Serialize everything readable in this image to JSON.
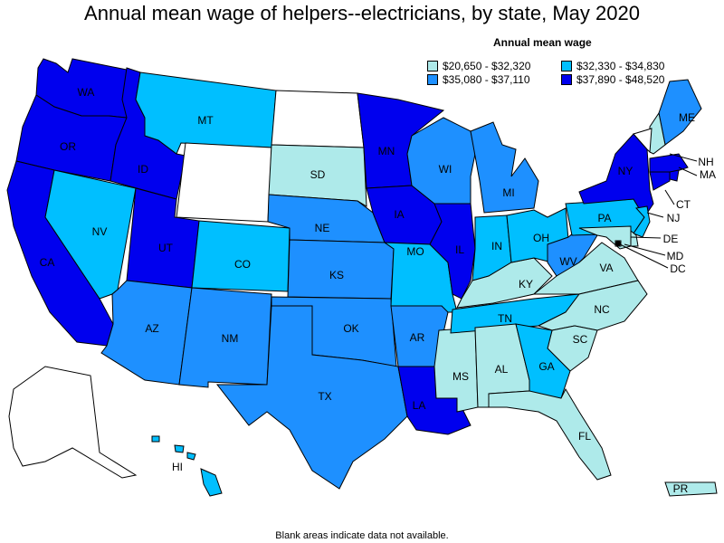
{
  "title": "Annual mean wage of helpers--electricians, by state, May 2020",
  "legend": {
    "title": "Annual mean wage",
    "items": [
      {
        "label": "$20,650 - $32,320",
        "color": "#aeeaea"
      },
      {
        "label": "$32,330 - $34,830",
        "color": "#00bfff"
      },
      {
        "label": "$35,080 - $37,110",
        "color": "#1e90ff"
      },
      {
        "label": "$37,890 - $48,520",
        "color": "#0000ee"
      }
    ]
  },
  "note": "Blank areas indicate data not available.",
  "colors": {
    "none": "#ffffff",
    "c1": "#aeeaea",
    "c2": "#00bfff",
    "c3": "#1e90ff",
    "c4": "#0000ee"
  },
  "states": [
    {
      "code": "WA",
      "tier": "c4"
    },
    {
      "code": "OR",
      "tier": "c4"
    },
    {
      "code": "CA",
      "tier": "c4"
    },
    {
      "code": "ID",
      "tier": "c4"
    },
    {
      "code": "NV",
      "tier": "c2"
    },
    {
      "code": "UT",
      "tier": "c4"
    },
    {
      "code": "AZ",
      "tier": "c3"
    },
    {
      "code": "MT",
      "tier": "c2"
    },
    {
      "code": "WY",
      "tier": "none"
    },
    {
      "code": "CO",
      "tier": "c2"
    },
    {
      "code": "NM",
      "tier": "c3"
    },
    {
      "code": "ND",
      "tier": "none"
    },
    {
      "code": "SD",
      "tier": "c1"
    },
    {
      "code": "NE",
      "tier": "c3"
    },
    {
      "code": "KS",
      "tier": "c3"
    },
    {
      "code": "OK",
      "tier": "c3"
    },
    {
      "code": "TX",
      "tier": "c3"
    },
    {
      "code": "MN",
      "tier": "c4"
    },
    {
      "code": "IA",
      "tier": "c4"
    },
    {
      "code": "MO",
      "tier": "c2"
    },
    {
      "code": "AR",
      "tier": "c3"
    },
    {
      "code": "LA",
      "tier": "c4"
    },
    {
      "code": "WI",
      "tier": "c3"
    },
    {
      "code": "IL",
      "tier": "c4"
    },
    {
      "code": "MS",
      "tier": "c1"
    },
    {
      "code": "MI",
      "tier": "c3"
    },
    {
      "code": "IN",
      "tier": "c2"
    },
    {
      "code": "KY",
      "tier": "c1"
    },
    {
      "code": "TN",
      "tier": "c2"
    },
    {
      "code": "AL",
      "tier": "c1"
    },
    {
      "code": "OH",
      "tier": "c2"
    },
    {
      "code": "WV",
      "tier": "c3"
    },
    {
      "code": "VA",
      "tier": "c1"
    },
    {
      "code": "NC",
      "tier": "c1"
    },
    {
      "code": "SC",
      "tier": "c1"
    },
    {
      "code": "GA",
      "tier": "c2"
    },
    {
      "code": "FL",
      "tier": "c1"
    },
    {
      "code": "PA",
      "tier": "c2"
    },
    {
      "code": "NY",
      "tier": "c4"
    },
    {
      "code": "ME",
      "tier": "c3"
    },
    {
      "code": "NH",
      "tier": "c1"
    },
    {
      "code": "VT",
      "tier": "none"
    },
    {
      "code": "MA",
      "tier": "c4"
    },
    {
      "code": "CT",
      "tier": "c4"
    },
    {
      "code": "RI",
      "tier": "c4"
    },
    {
      "code": "NJ",
      "tier": "c2"
    },
    {
      "code": "DE",
      "tier": "c1"
    },
    {
      "code": "MD",
      "tier": "c1"
    },
    {
      "code": "DC",
      "tier": "c1"
    },
    {
      "code": "AK",
      "tier": "none"
    },
    {
      "code": "HI",
      "tier": "c2"
    },
    {
      "code": "PR",
      "tier": "c1"
    }
  ]
}
